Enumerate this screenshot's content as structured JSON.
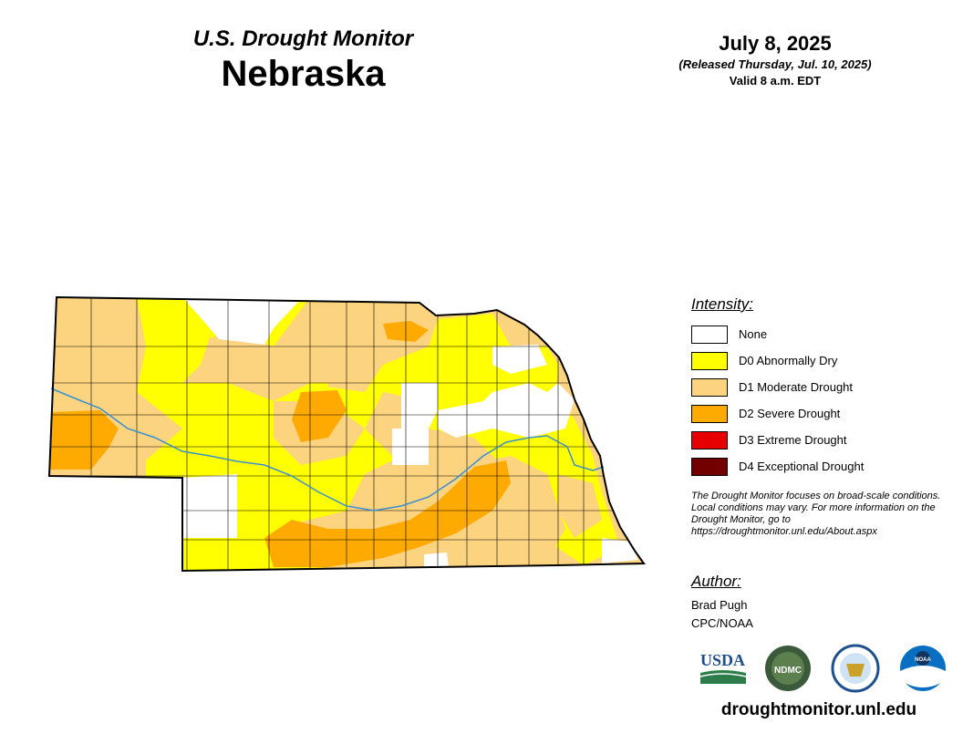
{
  "header": {
    "subtitle": "U.S. Drought Monitor",
    "state": "Nebraska",
    "date": "July 8, 2025",
    "released": "(Released Thursday, Jul. 10, 2025)",
    "valid": "Valid 8 a.m. EDT"
  },
  "legend": {
    "heading": "Intensity:",
    "items": [
      {
        "label": "None",
        "color": "#ffffff"
      },
      {
        "label": "D0 Abnormally Dry",
        "color": "#ffff00"
      },
      {
        "label": "D1 Moderate Drought",
        "color": "#fcd37f"
      },
      {
        "label": "D2 Severe Drought",
        "color": "#ffaa00"
      },
      {
        "label": "D3 Extreme Drought",
        "color": "#e60000"
      },
      {
        "label": "D4 Exceptional Drought",
        "color": "#730000"
      }
    ]
  },
  "disclaimer": "The Drought Monitor focuses on broad-scale conditions. Local conditions may vary. For more information on the Drought Monitor, go to https://droughtmonitor.unl.edu/About.aspx",
  "author": {
    "heading": "Author:",
    "name": "Brad Pugh",
    "org": "CPC/NOAA"
  },
  "logos": {
    "usda": "USDA",
    "ndmc": "NDMC",
    "noaa": "NOAA"
  },
  "website": "droughtmonitor.unl.edu",
  "colors": {
    "river": "#3a8fd0",
    "county_line": "#000000"
  }
}
